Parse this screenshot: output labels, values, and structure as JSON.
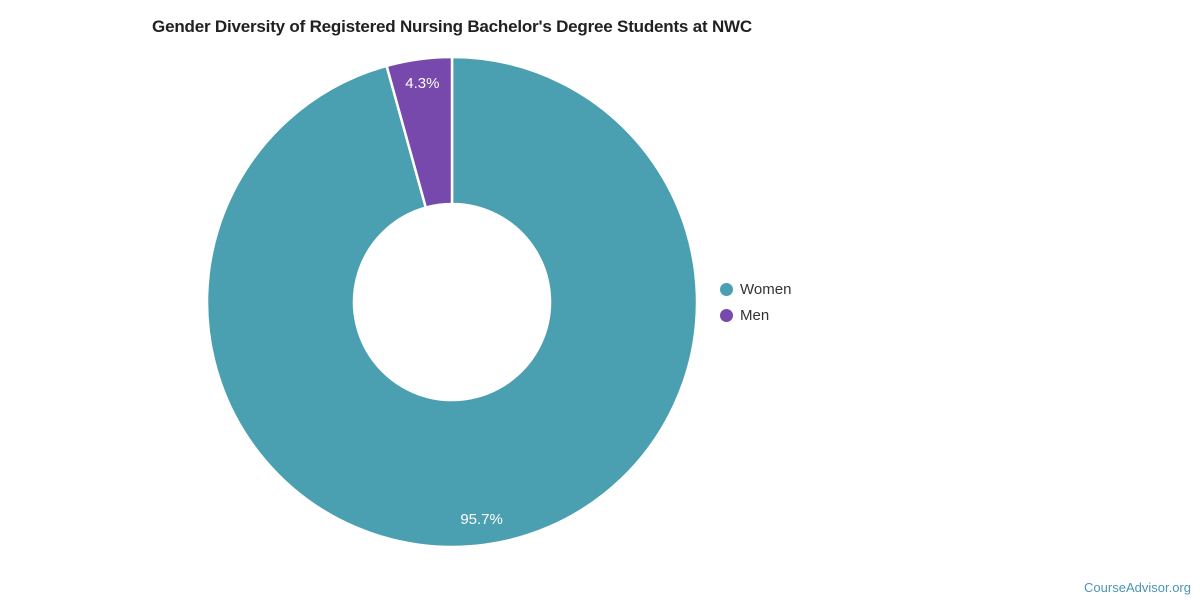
{
  "title": "Gender Diversity of Registered Nursing Bachelor's Degree Students at NWC",
  "watermark": {
    "text": "CourseAdvisor.org",
    "color": "#4a96b5"
  },
  "chart_data": {
    "type": "pie",
    "title": "Gender Diversity of Registered Nursing Bachelor's Degree Students at NWC",
    "donut": true,
    "inner_radius_ratio": 0.4,
    "start_angle_deg": 0,
    "direction": "clockwise",
    "legend_position": "right",
    "data_label_color": "#ffffff",
    "slice_border_color": "#ffffff",
    "slices": [
      {
        "label": "Women",
        "value": 95.7,
        "display": "95.7%",
        "color": "#4A9FB0"
      },
      {
        "label": "Men",
        "value": 4.3,
        "display": "4.3%",
        "color": "#7849AD"
      }
    ]
  },
  "legend": {
    "items": [
      {
        "label": "Women"
      },
      {
        "label": "Men"
      }
    ]
  }
}
